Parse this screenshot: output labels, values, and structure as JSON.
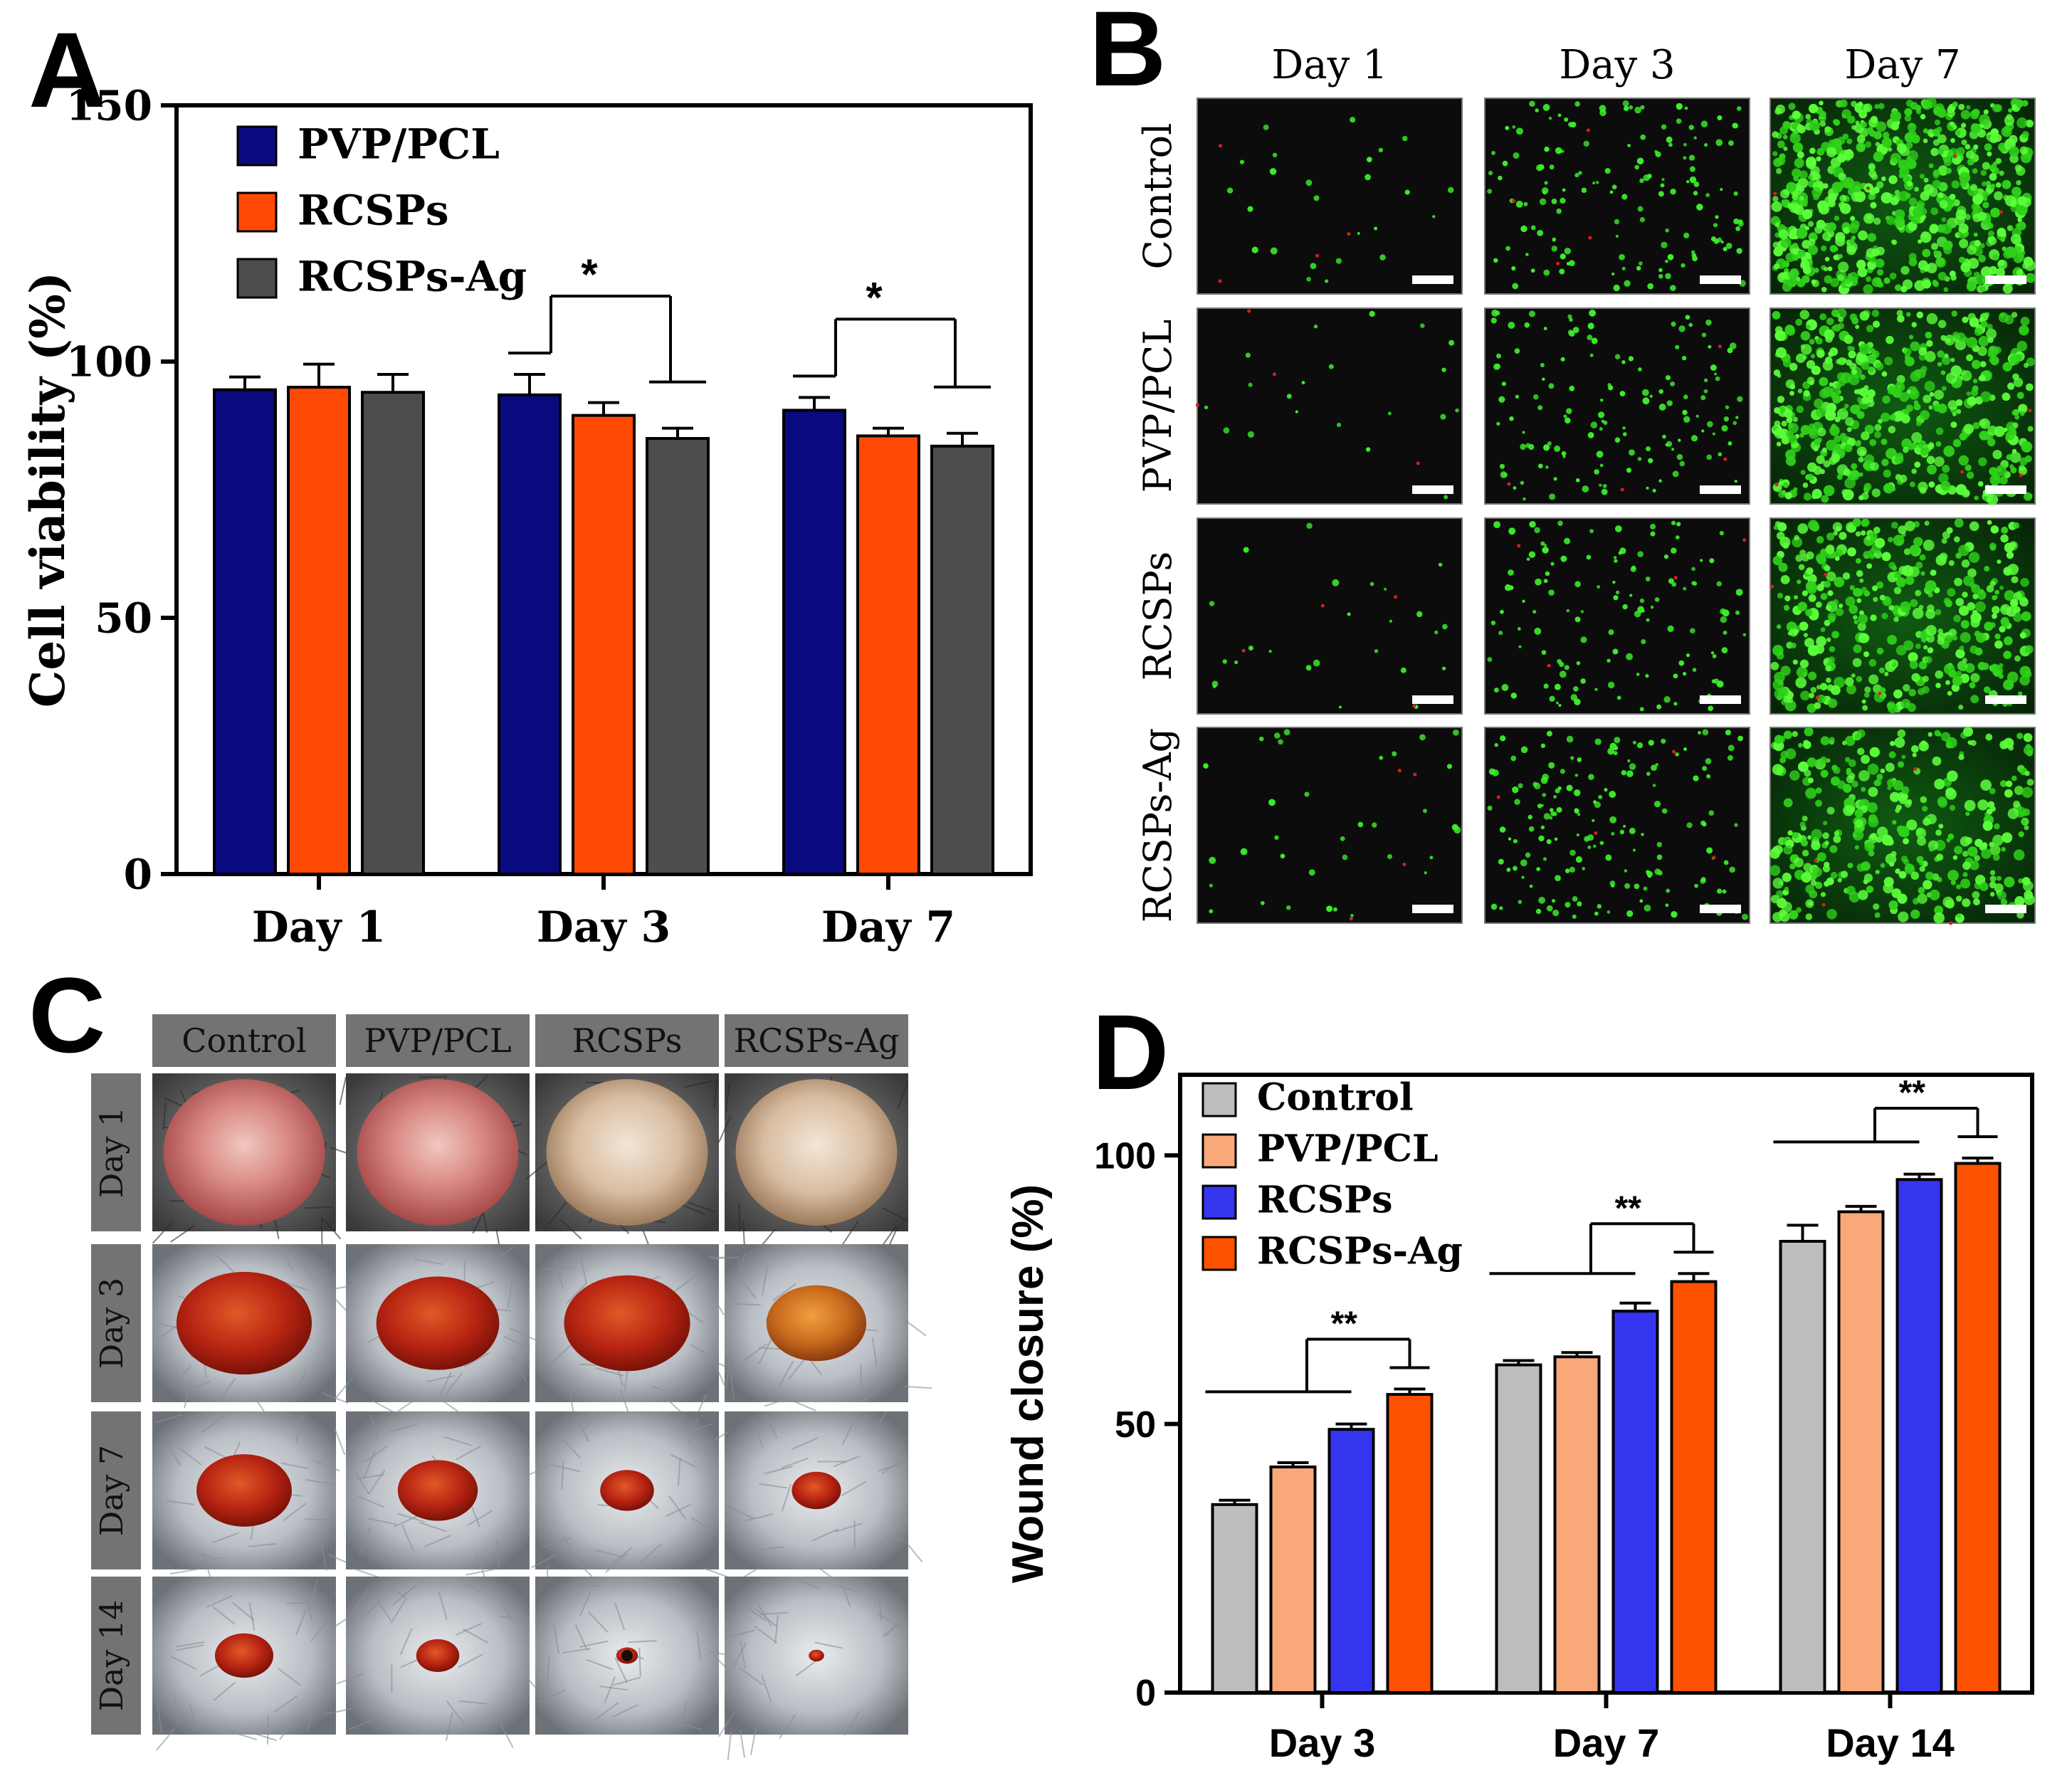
{
  "panels": {
    "a": "A",
    "b": "B",
    "c": "C",
    "d": "D"
  },
  "colors": {
    "navy": "#0a0a80",
    "orange_red": "#ff4a05",
    "dark_gray": "#4d4d4d",
    "light_gray": "#bdbdbd",
    "peach": "#f9a979",
    "blue": "#3535f0",
    "orange": "#ff5200"
  },
  "chart_data": [
    {
      "panel": "A",
      "type": "bar",
      "title": "",
      "xlabel": "",
      "ylabel": "Cell viability (%)",
      "ylim": [
        0,
        150
      ],
      "yticks": [
        0,
        50,
        100,
        150
      ],
      "categories": [
        "Day 1",
        "Day 3",
        "Day 7"
      ],
      "series": [
        {
          "name": "PVP/PCL",
          "color": "#0a0a80",
          "values": [
            94.5,
            93.5,
            90.5
          ],
          "errors": [
            2.5,
            4.0,
            2.5
          ]
        },
        {
          "name": "RCSPs",
          "color": "#ff4a05",
          "values": [
            95,
            89.5,
            85.5
          ],
          "errors": [
            4.5,
            2.5,
            1.5
          ]
        },
        {
          "name": "RCSPs-Ag",
          "color": "#4d4d4d",
          "values": [
            94,
            85,
            83.5
          ],
          "errors": [
            3.5,
            2.0,
            2.5
          ]
        }
      ],
      "legend": "top-left",
      "annotations": [
        {
          "text": "*",
          "group": "Day 3"
        },
        {
          "text": "*",
          "group": "Day 7"
        }
      ]
    },
    {
      "panel": "D",
      "type": "bar",
      "title": "",
      "xlabel": "",
      "ylabel": "Wound closure (%)",
      "ylim": [
        0,
        115
      ],
      "yticks": [
        0,
        50,
        100
      ],
      "categories": [
        "Day 3",
        "Day 7",
        "Day 14"
      ],
      "series": [
        {
          "name": "Control",
          "color": "#bdbdbd",
          "values": [
            35,
            61,
            84
          ],
          "errors": [
            0.8,
            0.8,
            3.0
          ]
        },
        {
          "name": "PVP/PCL",
          "color": "#f9a979",
          "values": [
            42,
            62.5,
            89.5
          ],
          "errors": [
            0.8,
            0.8,
            1.0
          ]
        },
        {
          "name": "RCSPs",
          "color": "#3535f0",
          "values": [
            49,
            71,
            95.5
          ],
          "errors": [
            1.0,
            1.5,
            1.0
          ]
        },
        {
          "name": "RCSPs-Ag",
          "color": "#ff5200",
          "values": [
            55.5,
            76.5,
            98.5
          ],
          "errors": [
            1.0,
            1.5,
            1.0
          ]
        }
      ],
      "legend": "top-left",
      "annotations": [
        {
          "text": "**",
          "group": "Day 3"
        },
        {
          "text": "**",
          "group": "Day 7"
        },
        {
          "text": "**",
          "group": "Day 14"
        }
      ]
    }
  ],
  "panel_b": {
    "columns": [
      "Day 1",
      "Day 3",
      "Day 7"
    ],
    "rows": [
      "Control",
      "PVP/PCL",
      "RCSPs",
      "RCSPs-Ag"
    ]
  },
  "panel_c": {
    "columns": [
      "Control",
      "PVP/PCL",
      "RCSPs",
      "RCSPs-Ag"
    ],
    "rows": [
      "Day 1",
      "Day 3",
      "Day 7",
      "Day 14"
    ]
  }
}
